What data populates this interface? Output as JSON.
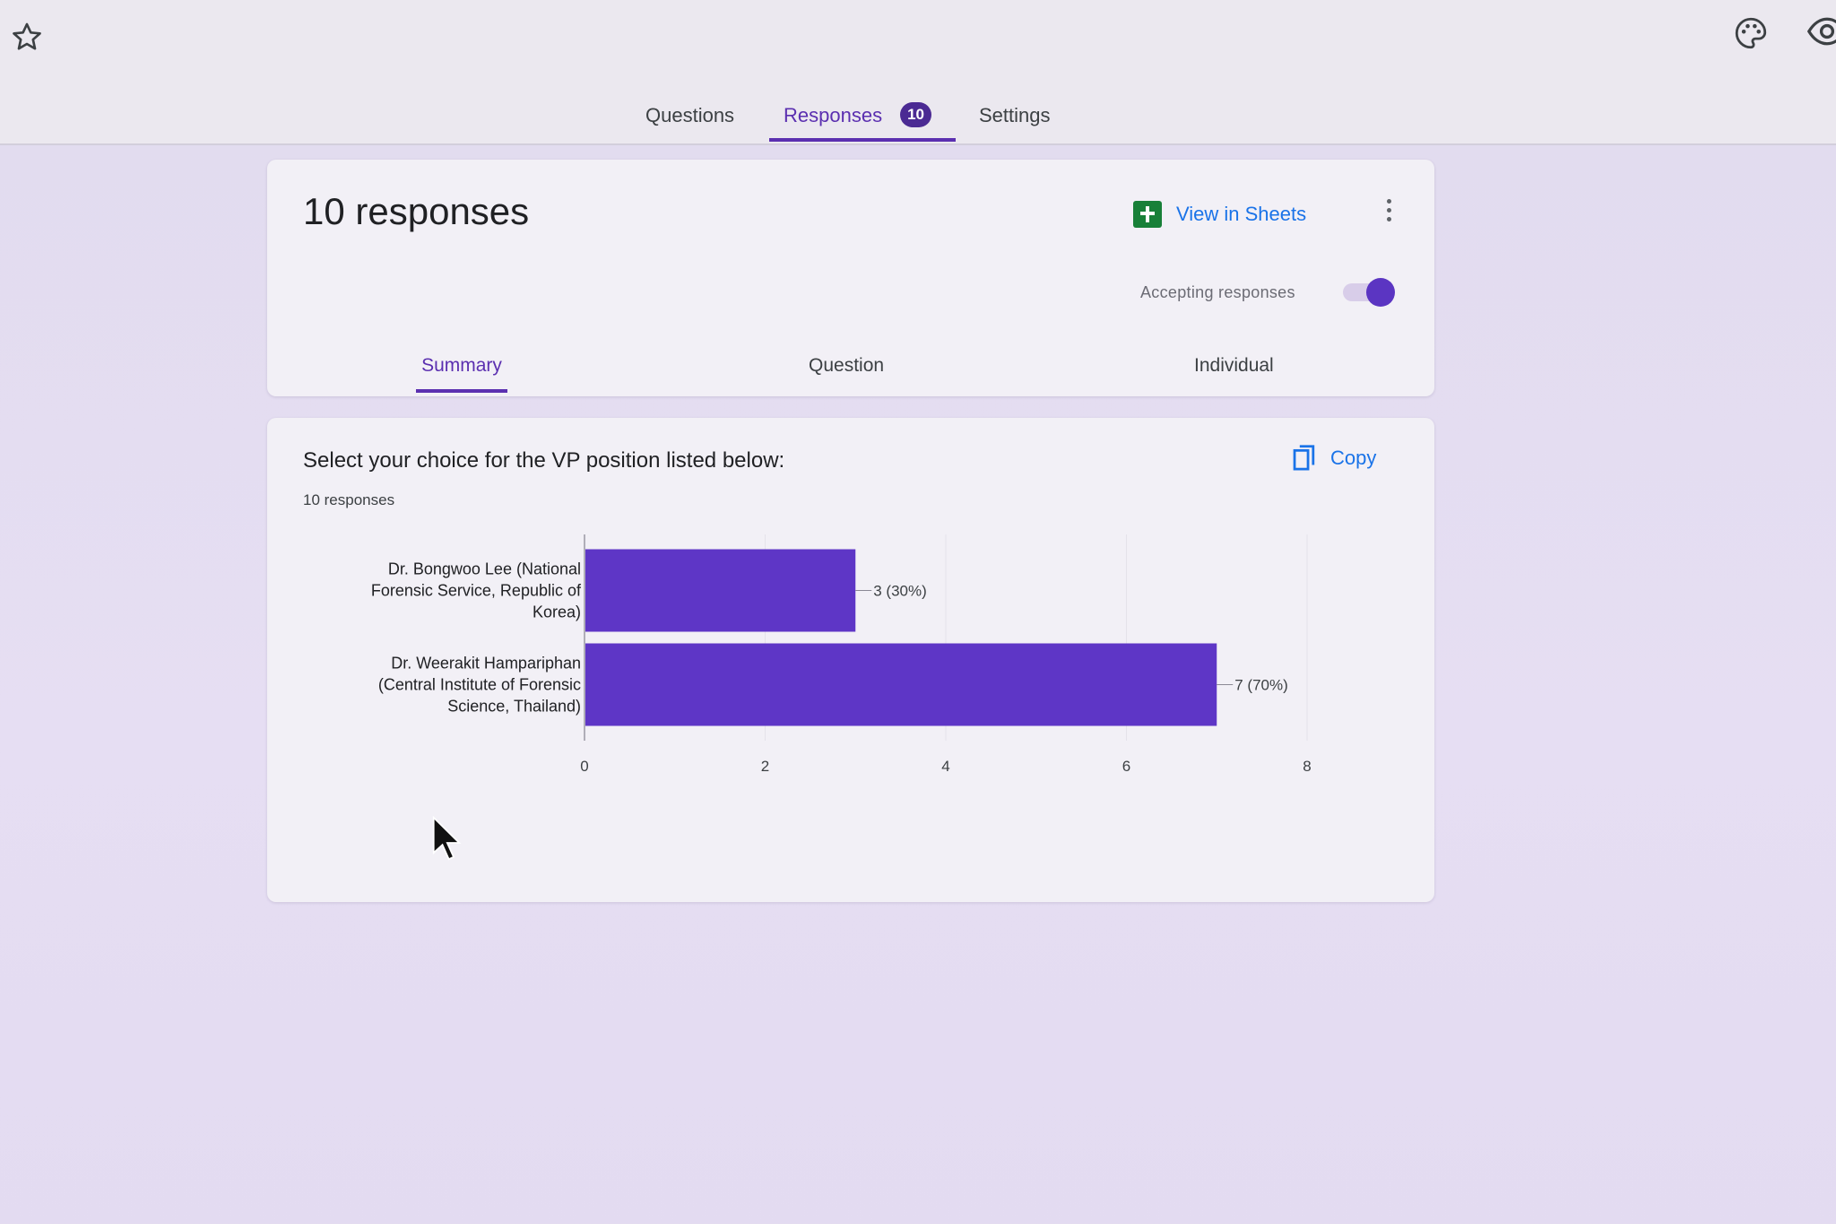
{
  "topbar": {
    "icons": [
      "star-icon",
      "palette-icon",
      "eye-icon"
    ]
  },
  "tabs": {
    "questions": "Questions",
    "responses": "Responses",
    "responses_badge": "10",
    "settings": "Settings"
  },
  "summary_card": {
    "title": "10 responses",
    "view_in_sheets": "View in Sheets",
    "accepting_label": "Accepting responses",
    "accepting_on": true,
    "subtabs": [
      "Summary",
      "Question",
      "Individual"
    ]
  },
  "question_card": {
    "title": "Select your choice for the VP position listed below:",
    "count": "10 responses",
    "copy_label": "Copy"
  },
  "colors": {
    "accent": "#5b2fb0",
    "bar": "#5e36c6",
    "link": "#1a73e8",
    "sheets_green": "#188038"
  },
  "chart_data": {
    "type": "bar",
    "orientation": "horizontal",
    "categories": [
      [
        "Dr. Bongwoo Lee (National",
        "Forensic Service, Republic of",
        "Korea)"
      ],
      [
        "Dr. Weerakit Hampariphan",
        "(Central Institute of Forensic",
        "Science, Thailand)"
      ]
    ],
    "values": [
      3,
      7
    ],
    "data_labels": [
      "3 (30%)",
      "7 (70%)"
    ],
    "xlim": [
      0,
      8
    ],
    "xticks": [
      "0",
      "2",
      "4",
      "6",
      "8"
    ],
    "grid": true
  }
}
